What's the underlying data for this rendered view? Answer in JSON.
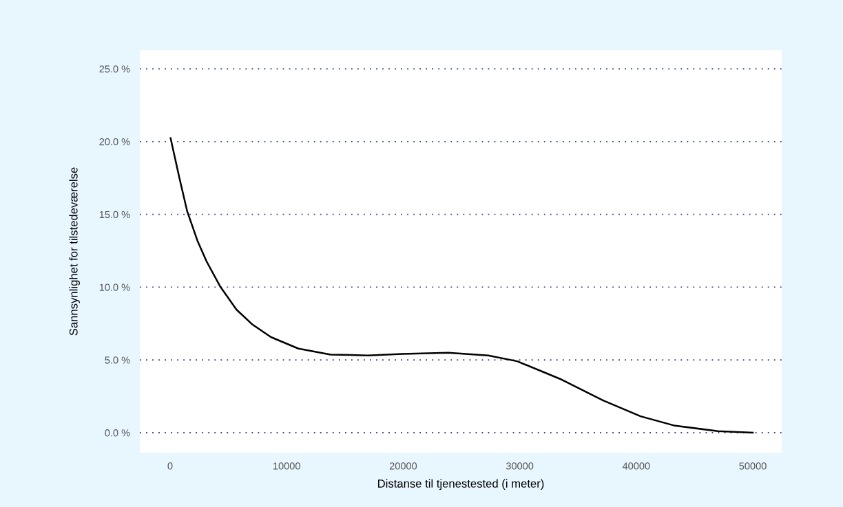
{
  "chart_data": {
    "type": "line",
    "xlabel": "Distanse til tjenestested (i meter)",
    "ylabel": "Sannsynlighet for tilstedeværelse",
    "x": [
      40,
      770,
      1460,
      2345,
      3130,
      4310,
      5690,
      7070,
      8650,
      11010,
      13770,
      16960,
      19920,
      23870,
      27300,
      29780,
      33450,
      37160,
      40370,
      43320,
      47010,
      50000
    ],
    "series": [
      {
        "color": "#000000",
        "values": [
          20.24,
          17.6,
          15.23,
          13.19,
          11.77,
          10.03,
          8.46,
          7.43,
          6.57,
          5.78,
          5.37,
          5.31,
          5.41,
          5.49,
          5.31,
          4.91,
          3.7,
          2.22,
          1.13,
          0.48,
          0.11,
          0.0
        ]
      }
    ],
    "xlim": [
      -2600,
      52480
    ],
    "ylim": [
      -1.37,
      26.28
    ],
    "xticks": [
      0,
      10000,
      20000,
      30000,
      40000,
      50000
    ],
    "yticks": [
      {
        "value": 0,
        "label": "0.0 %"
      },
      {
        "value": 5,
        "label": "5.0 %"
      },
      {
        "value": 10,
        "label": "10.0 %"
      },
      {
        "value": 15,
        "label": "15.0 %"
      },
      {
        "value": 20,
        "label": "20.0 %"
      },
      {
        "value": 25,
        "label": "25.0 %"
      }
    ],
    "grid": "y",
    "marker": "none",
    "line_style": "solid",
    "legend": false
  }
}
